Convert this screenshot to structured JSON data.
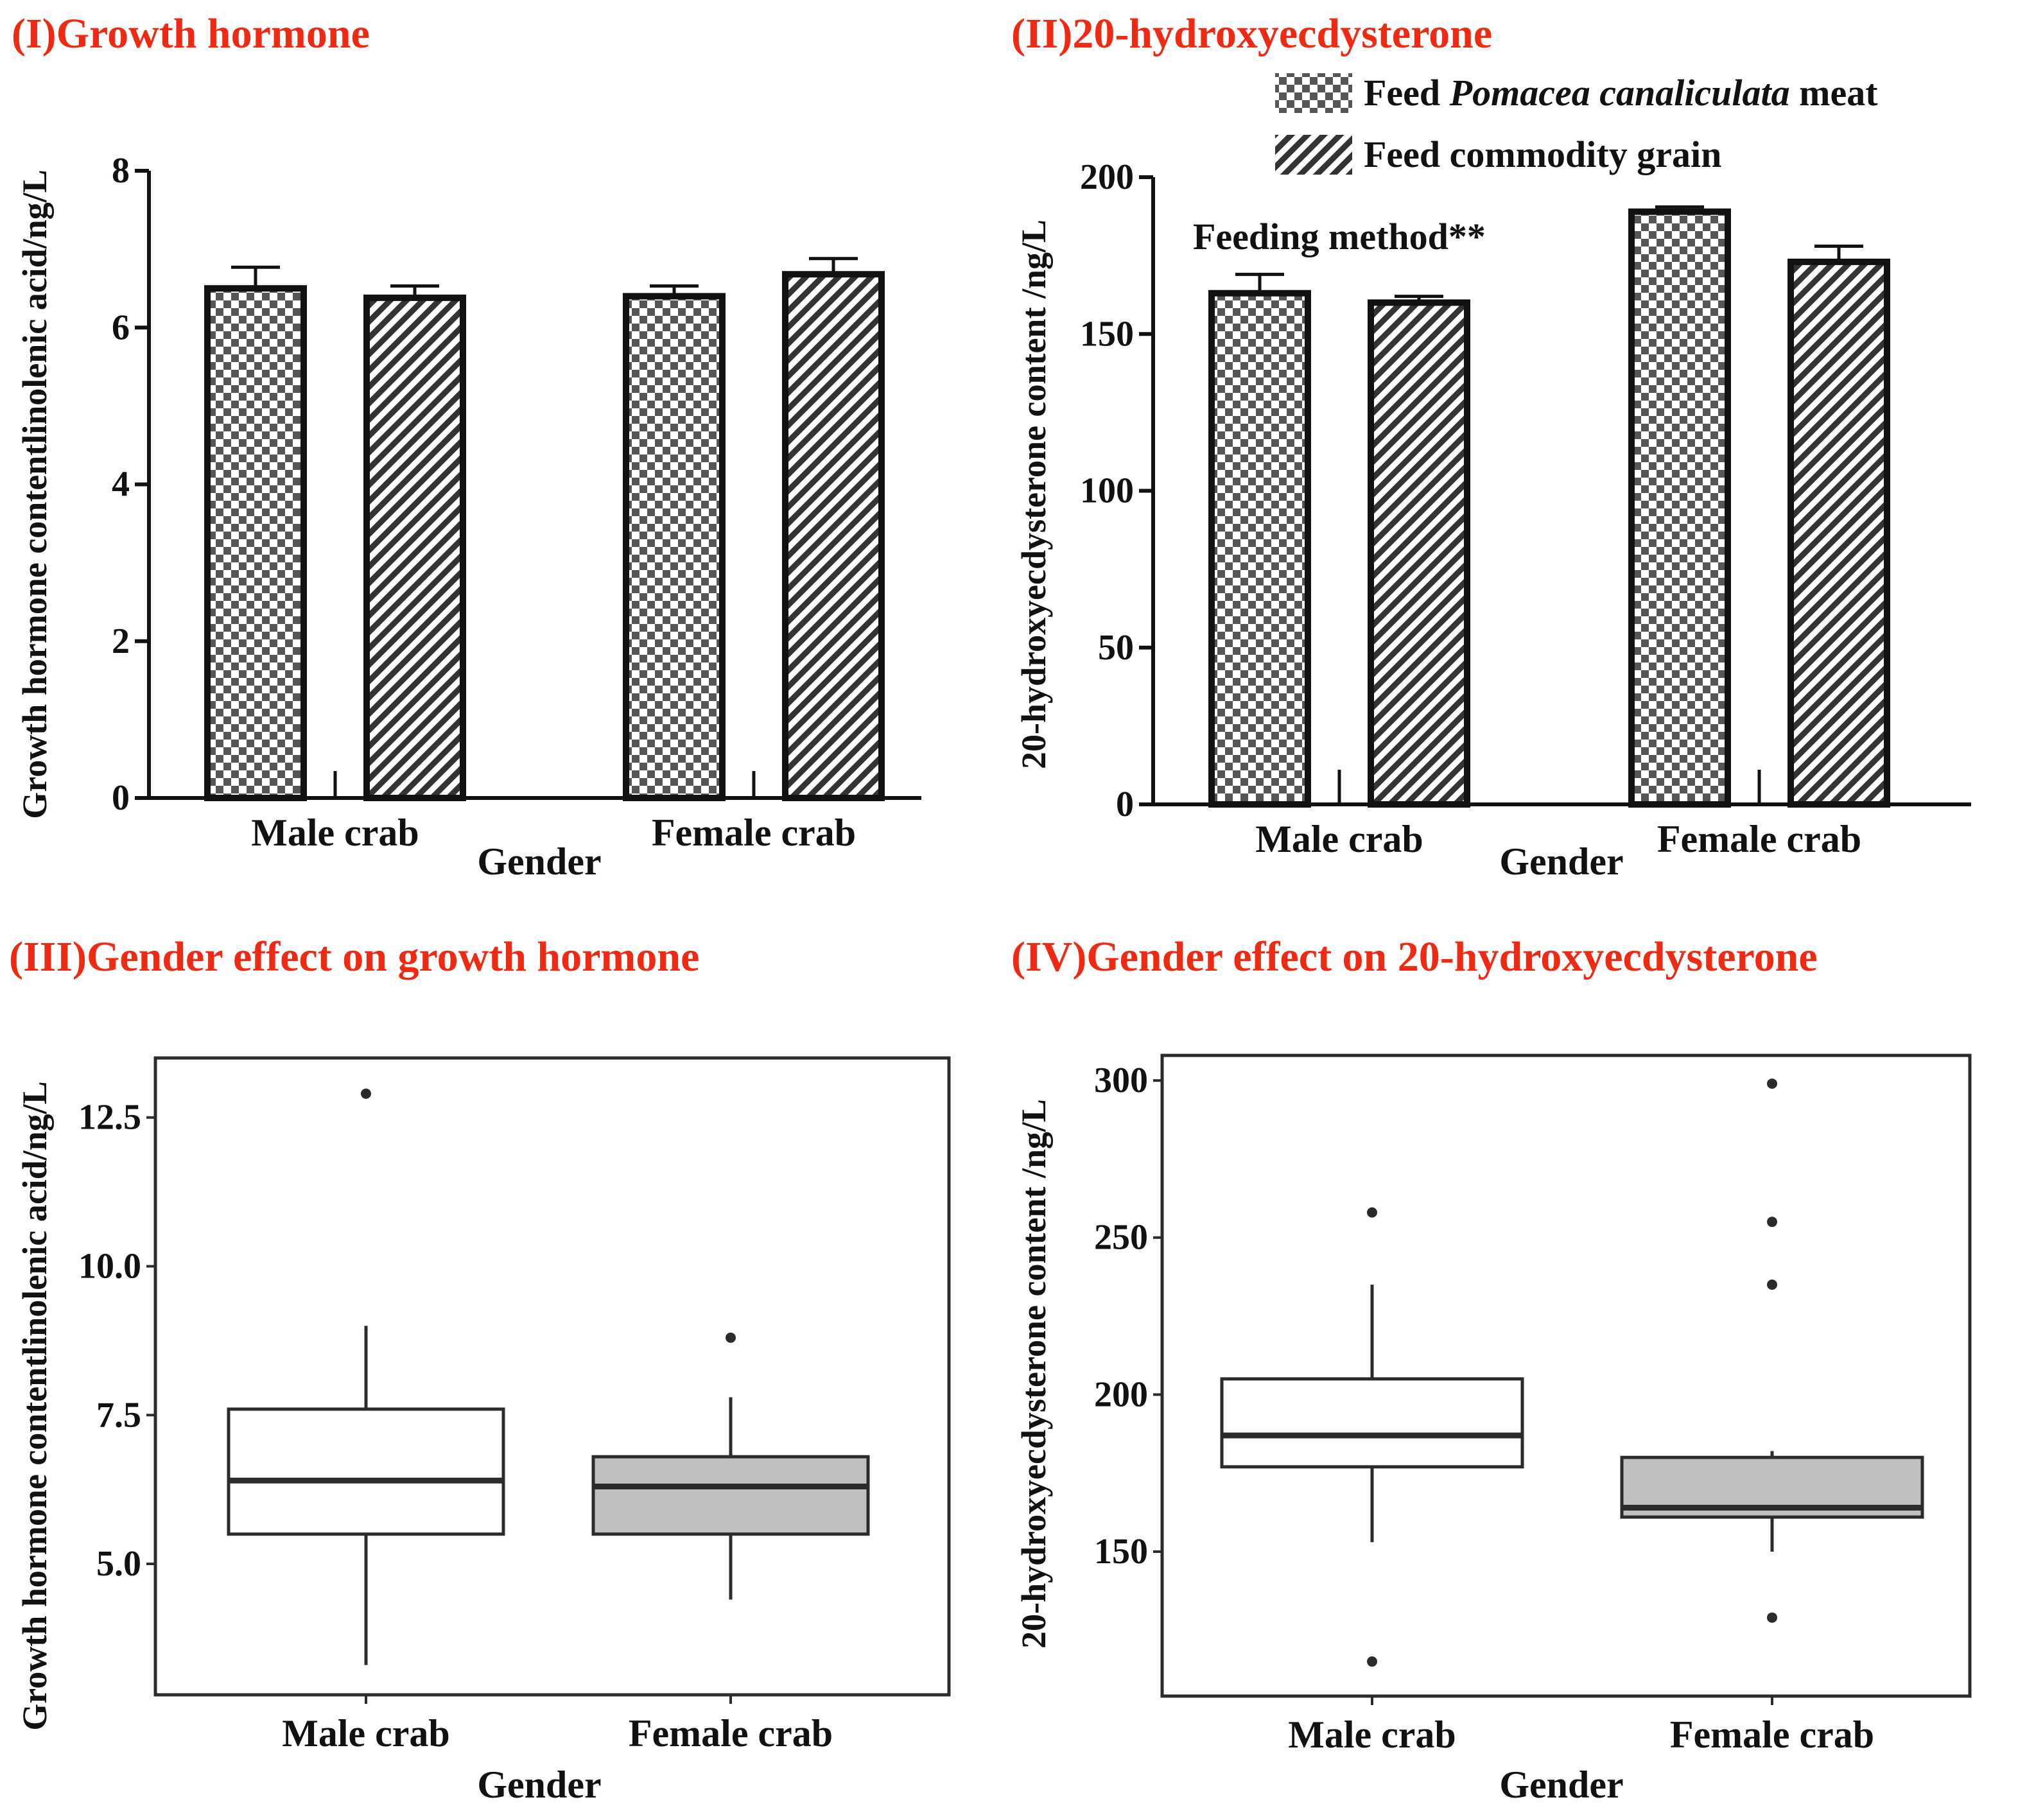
{
  "colors": {
    "title": "#f02a12",
    "ink": "#111111",
    "female_box": "#c0c0c0",
    "male_box": "#ffffff"
  },
  "legend": {
    "item1_prefix": "Feed",
    "item1_italic": "Pomacea canaliculata",
    "item1_suffix": "meat",
    "item2": "Feed commodity grain"
  },
  "chart_data": [
    {
      "id": "I",
      "type": "bar",
      "title": "(I)Growth hormone",
      "xlabel": "Gender",
      "ylabel": "Growth hormone contentlinolenic acid/ng/L",
      "categories": [
        "Male crab",
        "Female crab"
      ],
      "ylim": [
        0,
        8
      ],
      "yticks": [
        0,
        2,
        4,
        6,
        8
      ],
      "series": [
        {
          "name": "Feed Pomacea canaliculata meat",
          "pattern": "checker",
          "values": [
            6.5,
            6.4
          ],
          "errors": [
            0.27,
            0.13
          ]
        },
        {
          "name": "Feed commodity grain",
          "pattern": "hatch",
          "values": [
            6.38,
            6.68
          ],
          "errors": [
            0.15,
            0.2
          ]
        }
      ],
      "annotation": ""
    },
    {
      "id": "II",
      "type": "bar",
      "title": "(II)20-hydroxyecdysterone",
      "xlabel": "Gender",
      "ylabel": "20-hydroxyecdysterone content /ng/L",
      "categories": [
        "Male crab",
        "Female crab"
      ],
      "ylim": [
        0,
        200
      ],
      "yticks": [
        0,
        50,
        100,
        150,
        200
      ],
      "series": [
        {
          "name": "Feed Pomacea canaliculata meat",
          "pattern": "checker",
          "values": [
            163,
            189
          ],
          "errors": [
            6,
            1.5
          ]
        },
        {
          "name": "Feed commodity grain",
          "pattern": "hatch",
          "values": [
            160,
            173
          ],
          "errors": [
            2,
            5
          ]
        }
      ],
      "annotation": "Feeding method**"
    },
    {
      "id": "III",
      "type": "box",
      "title": "(III)Gender effect on growth hormone",
      "xlabel": "Gender",
      "ylabel": "Growth hormone contentlinolenic acid/ng/L",
      "categories": [
        "Male crab",
        "Female crab"
      ],
      "ylim": [
        2.8,
        13.5
      ],
      "yticks": [
        5.0,
        7.5,
        10.0,
        12.5
      ],
      "ytick_labels": [
        "5.0",
        "7.5",
        "10.0",
        "12.5"
      ],
      "boxes": [
        {
          "name": "Male crab",
          "whisker_low": 3.3,
          "q1": 5.5,
          "median": 6.4,
          "q3": 7.6,
          "whisker_high": 9.0,
          "outliers": [
            12.9
          ]
        },
        {
          "name": "Female crab",
          "whisker_low": 4.4,
          "q1": 5.5,
          "median": 6.3,
          "q3": 6.8,
          "whisker_high": 7.8,
          "outliers": [
            8.8
          ]
        }
      ]
    },
    {
      "id": "IV",
      "type": "box",
      "title": "(IV)Gender effect on 20-hydroxyecdysterone",
      "xlabel": "Gender",
      "ylabel": "20-hydroxyecdysterone content /ng/L",
      "categories": [
        "Male crab",
        "Female crab"
      ],
      "ylim": [
        104,
        308
      ],
      "yticks": [
        150,
        200,
        250,
        300
      ],
      "ytick_labels": [
        "150",
        "200",
        "250",
        "300"
      ],
      "boxes": [
        {
          "name": "Male crab",
          "whisker_low": 153,
          "q1": 177,
          "median": 187,
          "q3": 205,
          "whisker_high": 235,
          "outliers": [
            258,
            115
          ]
        },
        {
          "name": "Female crab",
          "whisker_low": 150,
          "q1": 161,
          "median": 164,
          "q3": 180,
          "whisker_high": 182,
          "outliers": [
            299,
            255,
            235,
            129
          ]
        }
      ]
    }
  ]
}
